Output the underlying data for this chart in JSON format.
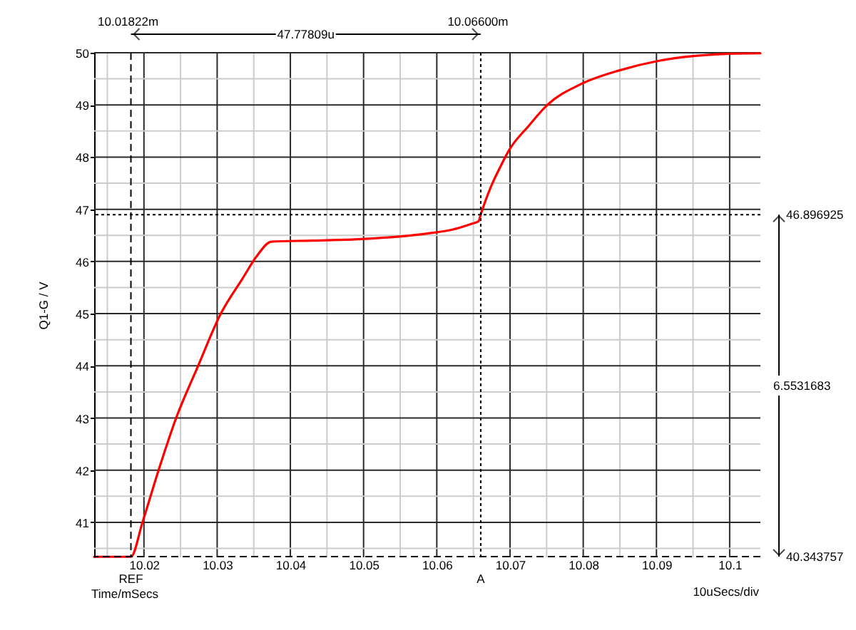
{
  "chart_data": {
    "type": "line",
    "xlabel": "Time/mSecs",
    "ylabel": "Q1-G / V",
    "x": [
      10.0132,
      10.01822,
      10.0198,
      10.022,
      10.0244,
      10.0274,
      10.0305,
      10.0335,
      10.0354,
      10.0374,
      10.043,
      10.0498,
      10.0589,
      10.0621,
      10.0647,
      10.0657,
      10.066,
      10.0673,
      10.0687,
      10.0699,
      10.0725,
      10.0751,
      10.0797,
      10.0849,
      10.0901,
      10.0953,
      10.1,
      10.1042
    ],
    "series": [
      {
        "color": "#ff0000",
        "values": [
          40.34,
          40.34,
          41.0,
          42.0,
          43.0,
          44.0,
          45.0,
          45.68,
          46.1,
          46.38,
          46.4,
          46.43,
          46.54,
          46.61,
          46.72,
          46.77,
          46.9,
          47.4,
          47.82,
          48.14,
          48.59,
          49.0,
          49.4,
          49.66,
          49.84,
          49.94,
          49.98,
          49.99
        ]
      }
    ],
    "xlim": [
      10.0132,
      10.1042
    ],
    "ylim": [
      40.33,
      50
    ],
    "xticks": [
      {
        "value": 10.015,
        "label": null
      },
      10.02,
      {
        "value": 10.025,
        "label": null
      },
      10.03,
      {
        "value": 10.035,
        "label": null
      },
      10.04,
      {
        "value": 10.045,
        "label": null
      },
      10.05,
      {
        "value": 10.055,
        "label": null
      },
      10.06,
      {
        "value": 10.065,
        "label": null
      },
      10.07,
      {
        "value": 10.075,
        "label": null
      },
      10.08,
      {
        "value": 10.085,
        "label": null
      },
      10.09,
      {
        "value": 10.095,
        "label": null
      },
      10.1
    ],
    "yticks": [
      {
        "value": 40.5,
        "label": null
      },
      41,
      {
        "value": 41.5,
        "label": null
      },
      42,
      {
        "value": 42.5,
        "label": null
      },
      43,
      {
        "value": 43.5,
        "label": null
      },
      44,
      {
        "value": 44.5,
        "label": null
      },
      45,
      {
        "value": 45.5,
        "label": null
      },
      46,
      {
        "value": 46.5,
        "label": null
      },
      47,
      {
        "value": 47.5,
        "label": null
      },
      48,
      {
        "value": 48.5,
        "label": null
      },
      49,
      {
        "value": 49.5,
        "label": null
      },
      50
    ],
    "grid": true,
    "ref_lines": [
      {
        "axis": "x",
        "value": 10.01822,
        "label": "REF",
        "line_style": "dashed",
        "color": "#000000"
      },
      {
        "axis": "x",
        "value": 10.066,
        "label": "A",
        "line_style": "dotted",
        "color": "#000000"
      },
      {
        "axis": "y",
        "value": 46.896925,
        "label": "46.896925",
        "line_style": "dotted",
        "color": "#000000"
      },
      {
        "axis": "y",
        "value": 40.343757,
        "label": "40.343757",
        "line_style": "dashed",
        "color": "#000000"
      }
    ],
    "annotations": [
      "10.01822m",
      "10.06600m",
      "47.77809u",
      "6.5531683",
      "10uSecs/div"
    ]
  }
}
